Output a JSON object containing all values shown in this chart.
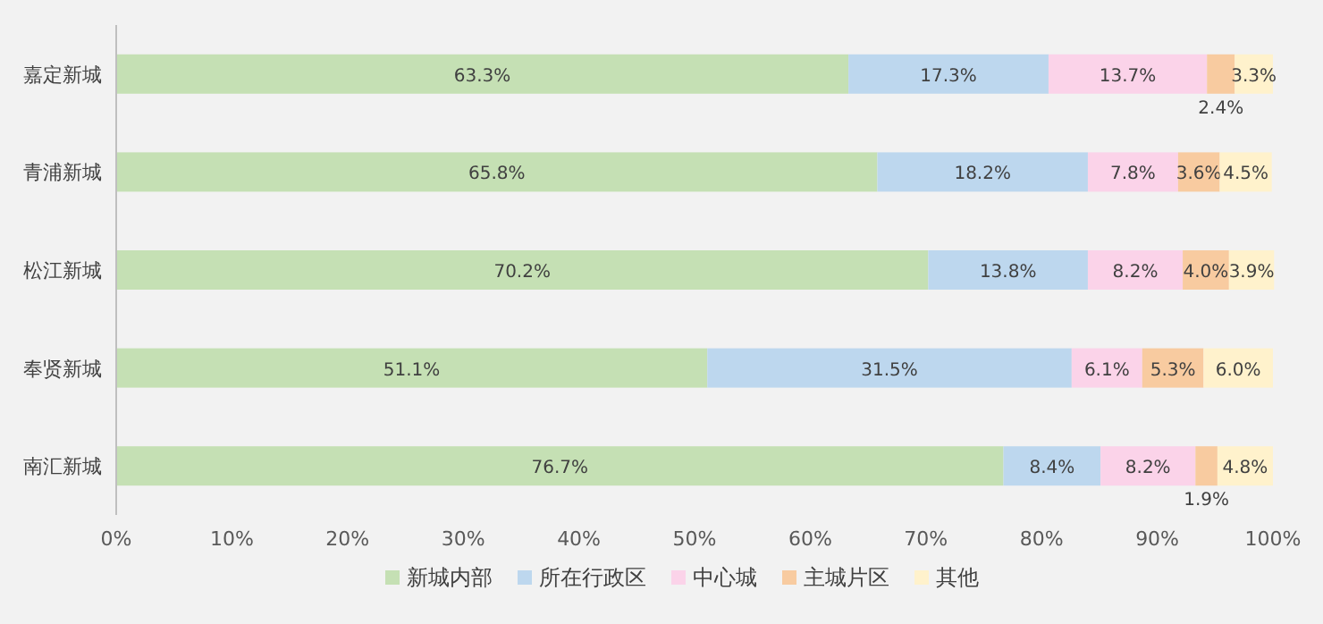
{
  "chart_data": {
    "type": "bar",
    "orientation": "horizontal",
    "stacked": true,
    "legend": "bottom",
    "categories": [
      "嘉定新城",
      "青浦新城",
      "松江新城",
      "奉贤新城",
      "南汇新城"
    ],
    "series": [
      {
        "name": "新城内部",
        "color": "#c5e0b4",
        "values": [
          63.3,
          65.8,
          70.2,
          51.1,
          76.7
        ],
        "value_labels": [
          "63.3%",
          "65.8%",
          "70.2%",
          "51.1%",
          "76.7%"
        ]
      },
      {
        "name": "所在行政区",
        "color": "#bdd7ee",
        "values": [
          17.3,
          18.2,
          13.8,
          31.5,
          8.4
        ],
        "value_labels": [
          "17.3%",
          "18.2%",
          "13.8%",
          "31.5%",
          "8.4%"
        ]
      },
      {
        "name": "中心城",
        "color": "#fbd3e9",
        "values": [
          13.7,
          7.8,
          8.2,
          6.1,
          8.2
        ],
        "value_labels": [
          "13.7%",
          "7.8%",
          "8.2%",
          "6.1%",
          "8.2%"
        ]
      },
      {
        "name": "主城片区",
        "color": "#f8cba0",
        "values": [
          2.4,
          3.6,
          4.0,
          5.3,
          1.9
        ],
        "value_labels": [
          "2.4%",
          "3.6%",
          "4.0%",
          "5.3%",
          "1.9%"
        ]
      },
      {
        "name": "其他",
        "color": "#fff2cc",
        "values": [
          3.3,
          4.5,
          3.9,
          6.0,
          4.8
        ],
        "value_labels": [
          "3.3%",
          "4.5%",
          "3.9%",
          "6.0%",
          "4.8%"
        ]
      }
    ],
    "xlim": [
      0,
      100
    ],
    "xticks": [
      {
        "value": 0,
        "label": "0%"
      },
      {
        "value": 10,
        "label": "10%"
      },
      {
        "value": 20,
        "label": "20%"
      },
      {
        "value": 30,
        "label": "30%"
      },
      {
        "value": 40,
        "label": "40%"
      },
      {
        "value": 50,
        "label": "50%"
      },
      {
        "value": 60,
        "label": "60%"
      },
      {
        "value": 70,
        "label": "70%"
      },
      {
        "value": 80,
        "label": "80%"
      },
      {
        "value": 90,
        "label": "90%"
      },
      {
        "value": 100,
        "label": "100%"
      }
    ]
  }
}
